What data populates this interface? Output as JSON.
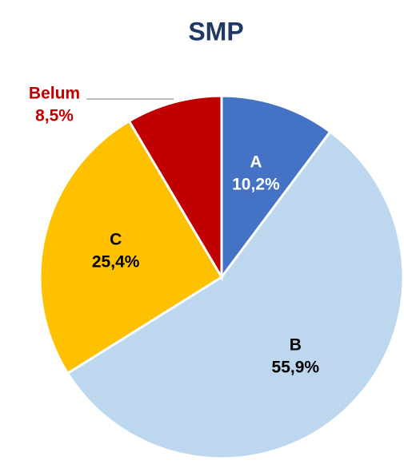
{
  "chart_data": {
    "type": "pie",
    "title": "SMP",
    "categories": [
      "A",
      "B",
      "C",
      "Belum"
    ],
    "values": [
      10.2,
      55.9,
      25.4,
      8.5
    ],
    "value_labels": [
      "10,2%",
      "55,9%",
      "25,4%",
      "8,5%"
    ],
    "colors": [
      "#4472c4",
      "#bdd7ee",
      "#ffc000",
      "#c00000"
    ],
    "label_colors": [
      "#ffffff",
      "#000000",
      "#000000",
      "#c00000"
    ],
    "title_color": "#1f3864"
  }
}
